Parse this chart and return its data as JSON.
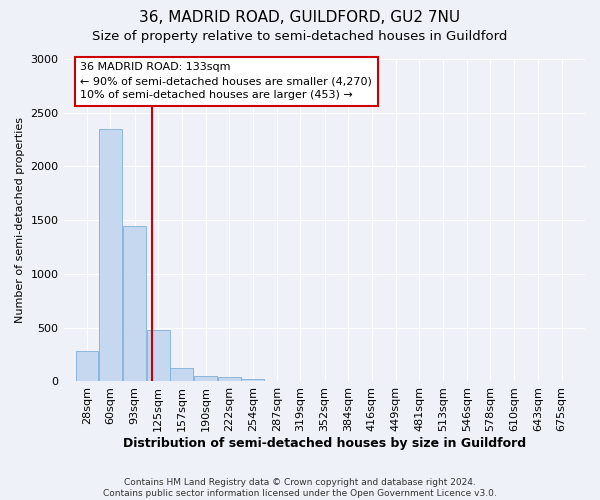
{
  "title": "36, MADRID ROAD, GUILDFORD, GU2 7NU",
  "subtitle": "Size of property relative to semi-detached houses in Guildford",
  "xlabel": "Distribution of semi-detached houses by size in Guildford",
  "ylabel": "Number of semi-detached properties",
  "footnote": "Contains HM Land Registry data © Crown copyright and database right 2024.\nContains public sector information licensed under the Open Government Licence v3.0.",
  "bin_labels": [
    "28sqm",
    "60sqm",
    "93sqm",
    "125sqm",
    "157sqm",
    "190sqm",
    "222sqm",
    "254sqm",
    "287sqm",
    "319sqm",
    "352sqm",
    "384sqm",
    "416sqm",
    "449sqm",
    "481sqm",
    "513sqm",
    "546sqm",
    "578sqm",
    "610sqm",
    "643sqm",
    "675sqm"
  ],
  "bin_edges": [
    28,
    60,
    93,
    125,
    157,
    190,
    222,
    254,
    287,
    319,
    352,
    384,
    416,
    449,
    481,
    513,
    546,
    578,
    610,
    643,
    675
  ],
  "bar_values": [
    280,
    2350,
    1450,
    475,
    125,
    55,
    40,
    25,
    0,
    0,
    0,
    0,
    0,
    0,
    0,
    0,
    0,
    0,
    0,
    0
  ],
  "bar_color": "#c5d8f0",
  "bar_edge_color": "#7fb0d8",
  "property_size": 133,
  "red_line_color": "#cc0000",
  "annotation_line1": "36 MADRID ROAD: 133sqm",
  "annotation_line2": "← 90% of semi-detached houses are smaller (4,270)",
  "annotation_line3": "10% of semi-detached houses are larger (453) →",
  "annotation_box_color": "#cc0000",
  "ylim": [
    0,
    3000
  ],
  "yticks": [
    0,
    500,
    1000,
    1500,
    2000,
    2500,
    3000
  ],
  "background_color": "#eef2f8",
  "plot_bg_color": "#eef2f8",
  "grid_color": "#ffffff",
  "title_fontsize": 11,
  "subtitle_fontsize": 9.5
}
